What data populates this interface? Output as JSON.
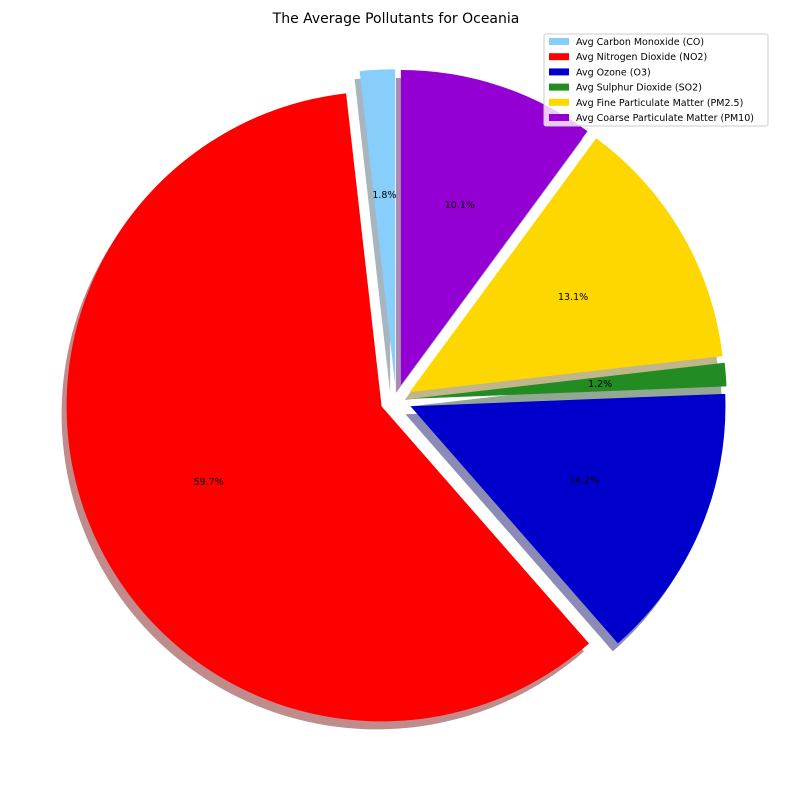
{
  "chart_data": {
    "type": "pie",
    "title": "The Average Pollutants for Oceania",
    "legend_position": "top-right",
    "shadow": true,
    "start_angle_deg": 90,
    "direction": "counterclockwise",
    "slices": [
      {
        "name": "Avg Carbon Monoxide (CO)",
        "value": 1.8,
        "label": "1.8%",
        "color": "#87CEFA"
      },
      {
        "name": "Avg Nitrogen Dioxide (NO2)",
        "value": 59.7,
        "label": "59.7%",
        "color": "#FF0000"
      },
      {
        "name": "Avg Ozone (O3)",
        "value": 14.2,
        "label": "14.2%",
        "color": "#0000CD"
      },
      {
        "name": "Avg Sulphur Dioxide (SO2)",
        "value": 1.2,
        "label": "1.2%",
        "color": "#228B22"
      },
      {
        "name": "Avg Fine Particulate Matter (PM2.5)",
        "value": 13.1,
        "label": "13.1%",
        "color": "#FFD700"
      },
      {
        "name": "Avg Coarse Particulate Matter (PM10)",
        "value": 10.1,
        "label": "10.1%",
        "color": "#9400D3"
      }
    ]
  }
}
